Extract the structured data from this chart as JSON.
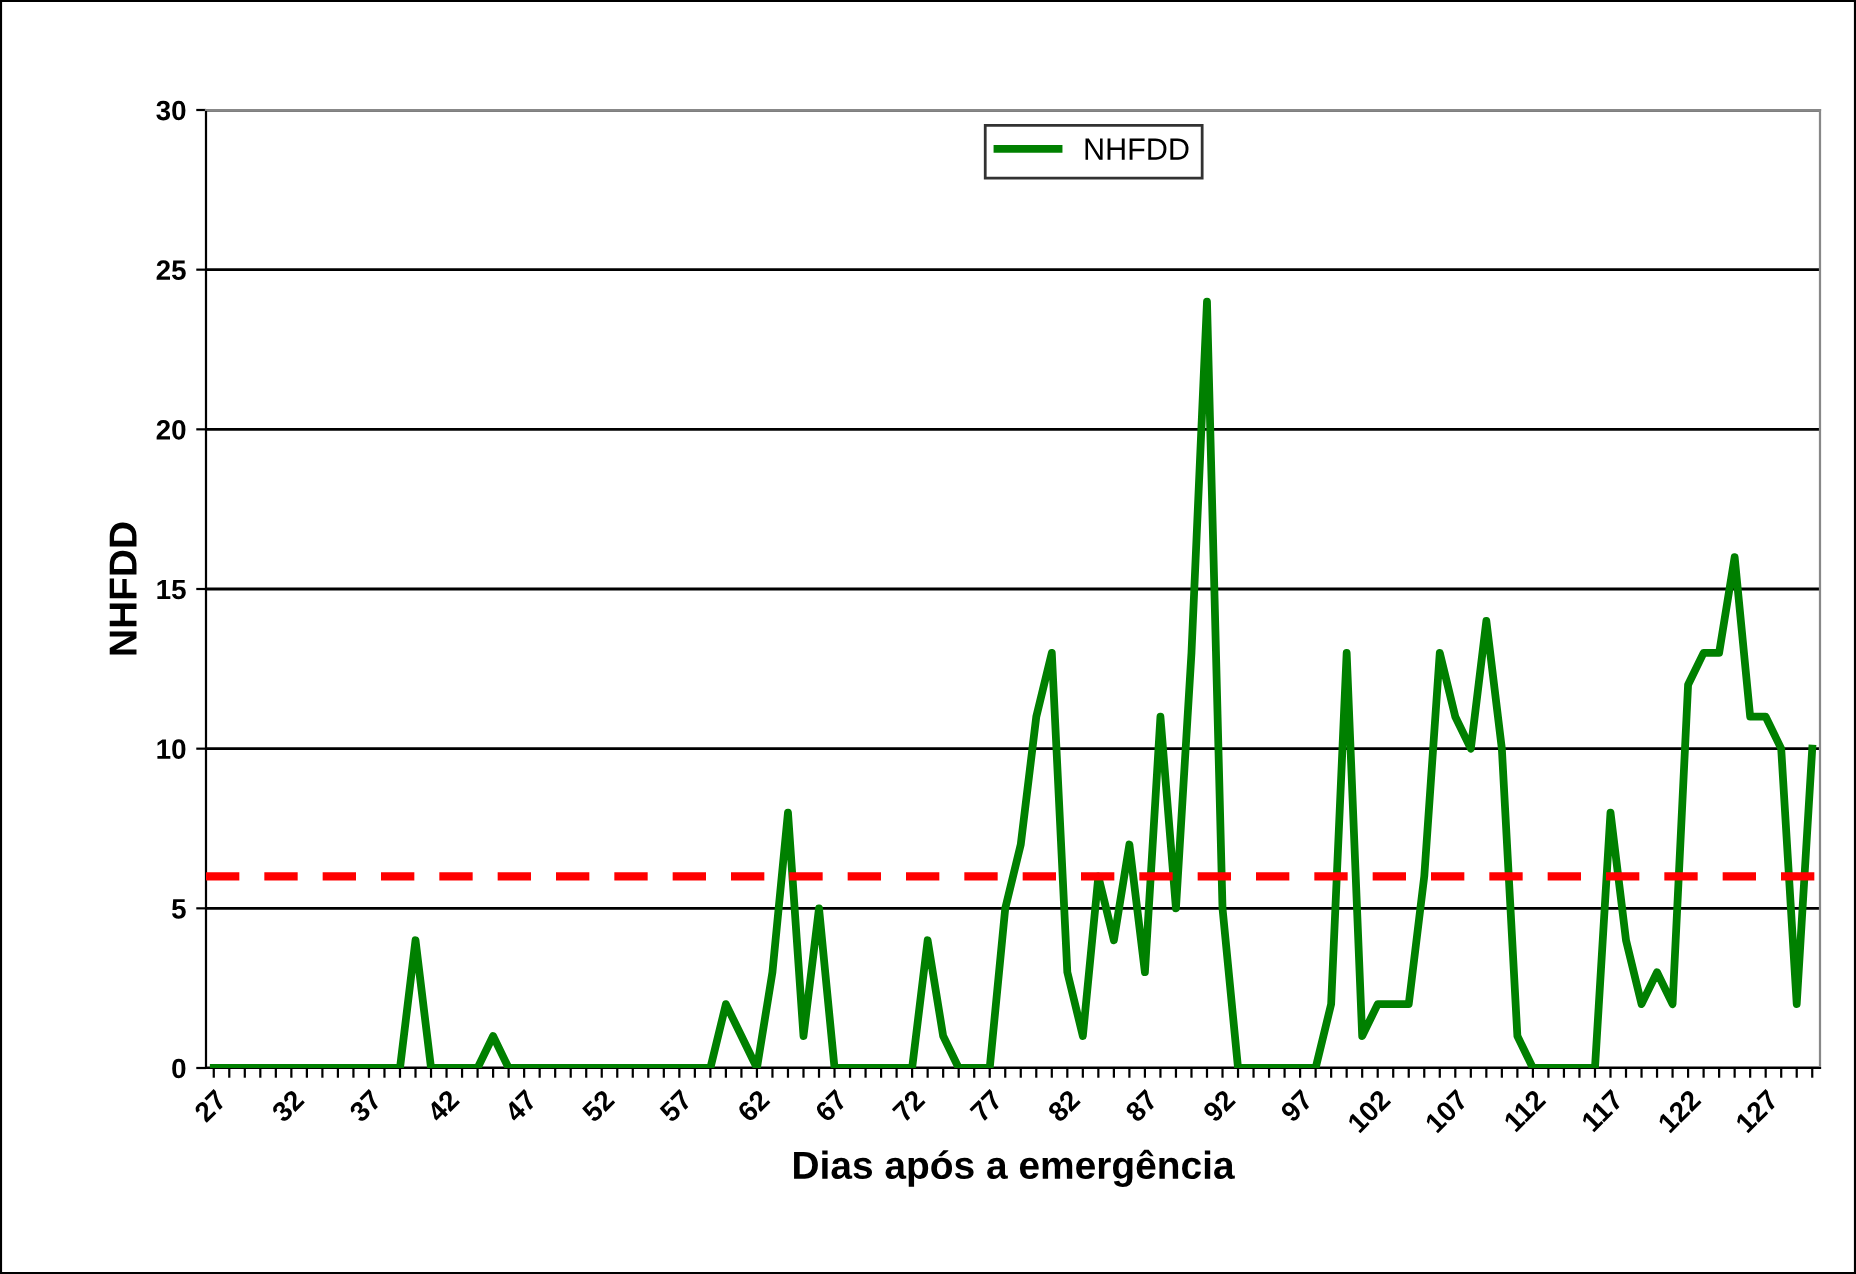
{
  "chart_data": {
    "type": "line",
    "xlabel": "Dias após a emergência",
    "ylabel": "NHFDD",
    "categories": [
      "27",
      null,
      null,
      null,
      null,
      "32",
      null,
      null,
      null,
      null,
      "37",
      null,
      null,
      null,
      null,
      "42",
      null,
      null,
      null,
      null,
      "47",
      null,
      null,
      null,
      null,
      "52",
      null,
      null,
      null,
      null,
      "57",
      null,
      null,
      null,
      null,
      "62",
      null,
      null,
      null,
      null,
      "67",
      null,
      null,
      null,
      null,
      "72",
      null,
      null,
      null,
      null,
      "77",
      null,
      null,
      null,
      null,
      "82",
      null,
      null,
      null,
      null,
      "87",
      null,
      null,
      null,
      null,
      "92",
      null,
      null,
      null,
      null,
      "97",
      null,
      null,
      null,
      null,
      "102",
      null,
      null,
      null,
      null,
      "107",
      null,
      null,
      null,
      null,
      "112",
      null,
      null,
      null,
      null,
      "117",
      null,
      null,
      null,
      null,
      "122",
      null,
      null,
      null,
      null,
      "127",
      null,
      null,
      null
    ],
    "series": [
      {
        "name": "NHFDD",
        "color": "#008000",
        "values": [
          0,
          0,
          0,
          0,
          0,
          0,
          0,
          0,
          0,
          0,
          0,
          0,
          0,
          4,
          0,
          0,
          0,
          0,
          1,
          0,
          0,
          0,
          0,
          0,
          0,
          0,
          0,
          0,
          0,
          0,
          0,
          0,
          0,
          2,
          1,
          0,
          3,
          8,
          1,
          5,
          0,
          0,
          0,
          0,
          0,
          0,
          4,
          1,
          0,
          0,
          0,
          5,
          7,
          11,
          13,
          3,
          1,
          6,
          4,
          7,
          3,
          11,
          5,
          13,
          24,
          5,
          0,
          0,
          0,
          0,
          0,
          0,
          2,
          13,
          1,
          2,
          2,
          2,
          6,
          13,
          11,
          10,
          14,
          10,
          1,
          0,
          0,
          0,
          0,
          0,
          8,
          4,
          2,
          3,
          2,
          12,
          13,
          13,
          16,
          11,
          11,
          10,
          2,
          10
        ]
      }
    ],
    "ylim": [
      0,
      30
    ],
    "yticks": [
      0,
      5,
      10,
      15,
      20,
      25,
      30
    ],
    "grid": "y",
    "legend": "top",
    "marker": "none",
    "line_style": "solid",
    "ref_lines": [
      {
        "axis": "y",
        "value": 6,
        "color": "#ff0000",
        "line_style": "dashed"
      }
    ]
  }
}
